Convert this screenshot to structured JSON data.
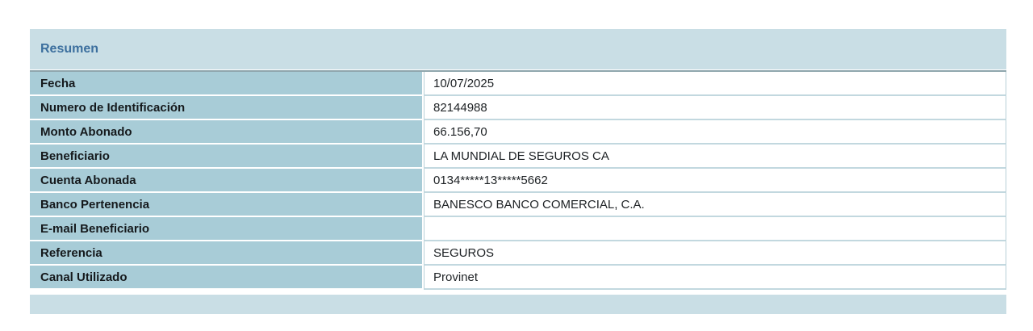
{
  "summary_table": {
    "title": "Resumen",
    "rows": [
      {
        "label": "Fecha",
        "value": "10/07/2025"
      },
      {
        "label": "Numero de Identificación",
        "value": "82144988"
      },
      {
        "label": "Monto Abonado",
        "value": "66.156,70"
      },
      {
        "label": "Beneficiario",
        "value": "LA MUNDIAL DE SEGUROS CA"
      },
      {
        "label": "Cuenta Abonada",
        "value": "0134*****13*****5662"
      },
      {
        "label": "Banco Pertenencia",
        "value": "BANESCO BANCO COMERCIAL, C.A."
      },
      {
        "label": "E-mail Beneficiario",
        "value": ""
      },
      {
        "label": "Referencia",
        "value": "SEGUROS"
      },
      {
        "label": "Canal Utilizado",
        "value": "Provinet"
      }
    ]
  },
  "colors": {
    "header_footer_bg": "#c9dee5",
    "label_cell_bg": "#a8ccd7",
    "title_text": "#3c6f9e",
    "value_border": "#b9d0d8",
    "body_top_border": "#8fa6ad",
    "label_text": "#15191c",
    "value_text": "#1d2124"
  }
}
